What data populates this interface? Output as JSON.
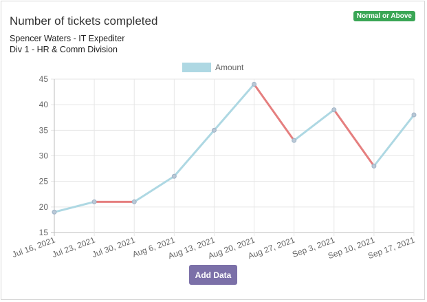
{
  "header": {
    "title": "Number of tickets completed",
    "subtitle_line1": "Spencer Waters - IT Expediter",
    "subtitle_line2": "Div 1 - HR & Comm Division",
    "badge": "Normal or Above",
    "badge_color": "#3aa655"
  },
  "actions": {
    "add_data_label": "Add Data",
    "button_color": "#7b70a8"
  },
  "chart_data": {
    "type": "line",
    "categories": [
      "Jul 16, 2021",
      "Jul 23, 2021",
      "Jul 30, 2021",
      "Aug 6, 2021",
      "Aug 13, 2021",
      "Aug 20, 2021",
      "Aug 27, 2021",
      "Sep 3, 2021",
      "Sep 10, 2021",
      "Sep 17, 2021"
    ],
    "series": [
      {
        "name": "Amount",
        "values": [
          19,
          21,
          21,
          26,
          35,
          44,
          33,
          39,
          28,
          38
        ],
        "color": "#aed8e3",
        "decline_color": "#e57f7f"
      }
    ],
    "yticks": [
      15,
      20,
      25,
      30,
      35,
      40,
      45
    ],
    "ylim": [
      15,
      45
    ],
    "grid": true,
    "legend": "top-center"
  }
}
